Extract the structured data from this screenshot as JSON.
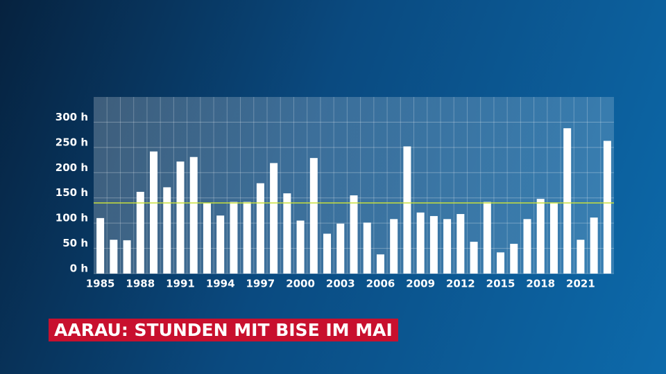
{
  "chart_data": {
    "type": "bar",
    "title": "AARAU: STUNDEN MIT BISE IM MAI",
    "categories": [
      "1985",
      null,
      null,
      "1988",
      null,
      null,
      "1991",
      null,
      null,
      "1994",
      null,
      null,
      "1997",
      null,
      null,
      "2000",
      null,
      null,
      "2003",
      null,
      null,
      "2006",
      null,
      null,
      "2009",
      null,
      null,
      "2012",
      null,
      null,
      "2015",
      null,
      null,
      "2018",
      null,
      null,
      "2021",
      null,
      null
    ],
    "values": [
      110,
      67,
      66,
      162,
      242,
      171,
      222,
      231,
      140,
      115,
      142,
      142,
      179,
      219,
      159,
      105,
      229,
      79,
      99,
      155,
      101,
      38,
      108,
      252,
      121,
      114,
      108,
      118,
      63,
      142,
      42,
      59,
      108,
      148,
      141,
      288,
      67,
      111,
      263
    ],
    "color": "#ffffff",
    "reference_line": {
      "value": 140,
      "color": "#c8e03a"
    },
    "ylim": [
      0,
      350
    ],
    "yticks": [
      {
        "value": 0,
        "label": "0 h"
      },
      {
        "value": 50,
        "label": "50 h"
      },
      {
        "value": 100,
        "label": "100 h"
      },
      {
        "value": 150,
        "label": "150 h"
      },
      {
        "value": 200,
        "label": "200 h"
      },
      {
        "value": 250,
        "label": "250 h"
      },
      {
        "value": 300,
        "label": "300 h"
      }
    ],
    "grid": true
  }
}
